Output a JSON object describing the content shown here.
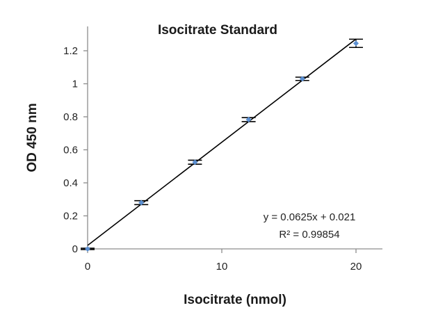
{
  "chart_data": {
    "type": "scatter",
    "title": "Isocitrate Standard",
    "xlabel": "Isocitrate (nmol)",
    "ylabel": "OD 450 nm",
    "xlim": [
      0,
      22
    ],
    "ylim": [
      0,
      1.3
    ],
    "x_ticks": [
      0,
      10,
      20
    ],
    "x_tick_labels": [
      "0",
      "10",
      "20"
    ],
    "y_ticks": [
      0,
      0.2,
      0.4,
      0.6,
      0.8,
      1.0,
      1.2
    ],
    "y_tick_labels": [
      "0",
      "0.2",
      "0.4",
      "0.6",
      "0.8",
      "1",
      "1.2"
    ],
    "grid": false,
    "legend": "none",
    "series": [
      {
        "x": [
          0,
          4,
          8,
          12,
          16,
          20
        ],
        "y": [
          0.0,
          0.28,
          0.525,
          0.783,
          1.03,
          1.245
        ],
        "error": [
          0.004,
          0.012,
          0.012,
          0.012,
          0.01,
          0.025
        ],
        "color": "#5b8fd1"
      }
    ],
    "trendline": {
      "slope": 0.0625,
      "intercept": 0.021,
      "color": "#000000"
    },
    "annotation": {
      "equation": "y = 0.0625x + 0.021",
      "r_squared": "R² = 0.99854"
    }
  }
}
